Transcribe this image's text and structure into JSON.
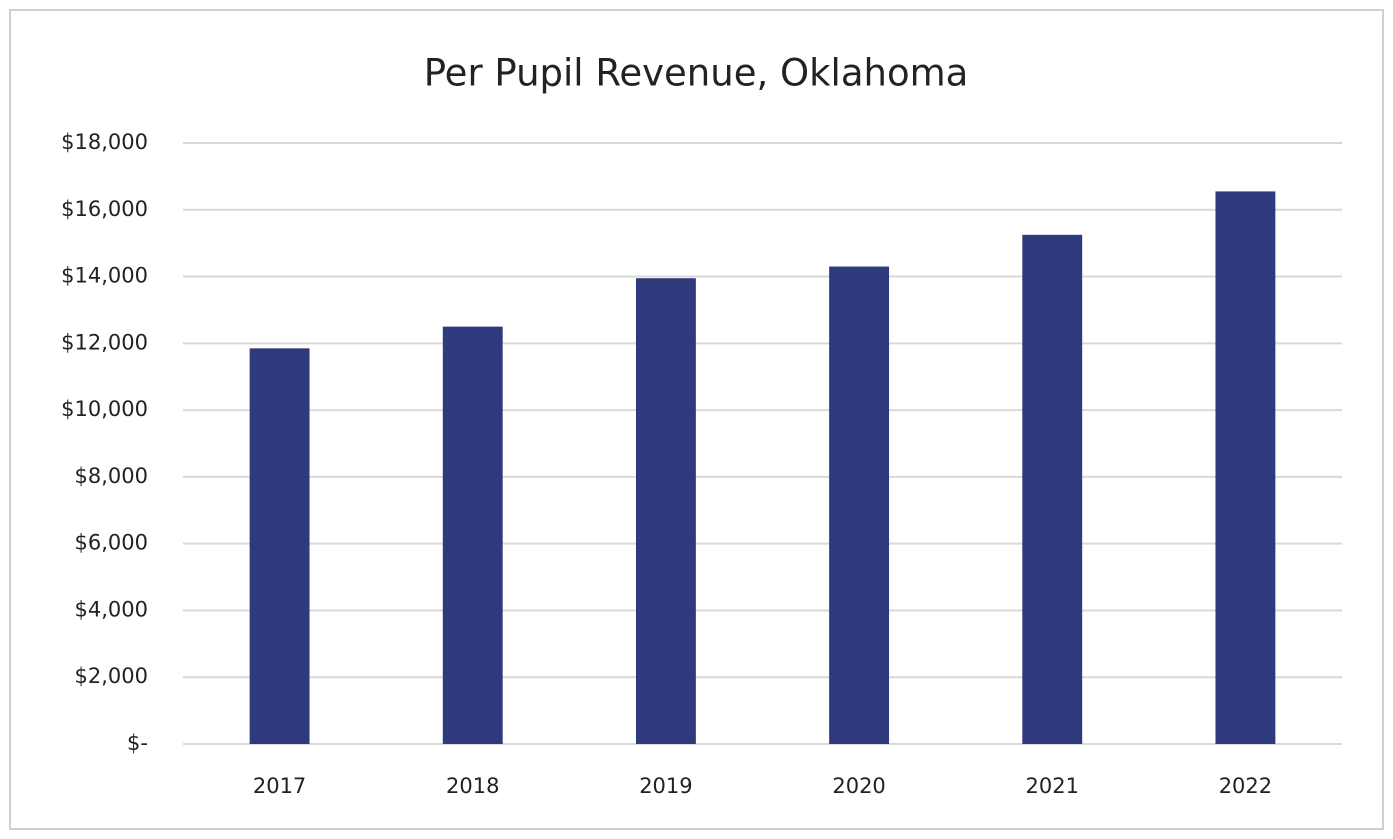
{
  "chart_data": {
    "type": "bar",
    "title": "Per Pupil Revenue, Oklahoma",
    "categories": [
      "2017",
      "2018",
      "2019",
      "2020",
      "2021",
      "2022"
    ],
    "values": [
      11850,
      12500,
      13950,
      14300,
      15250,
      16550
    ],
    "color": "#2e3a7c",
    "ylim": [
      0,
      18000
    ],
    "yticks": [
      {
        "value": 0,
        "label": "$-"
      },
      {
        "value": 2000,
        "label": "$2,000"
      },
      {
        "value": 4000,
        "label": "$4,000"
      },
      {
        "value": 6000,
        "label": "$6,000"
      },
      {
        "value": 8000,
        "label": "$8,000"
      },
      {
        "value": 10000,
        "label": "$10,000"
      },
      {
        "value": 12000,
        "label": "$12,000"
      },
      {
        "value": 14000,
        "label": "$14,000"
      },
      {
        "value": 16000,
        "label": "$16,000"
      },
      {
        "value": 18000,
        "label": "$18,000"
      }
    ],
    "grid": true
  }
}
